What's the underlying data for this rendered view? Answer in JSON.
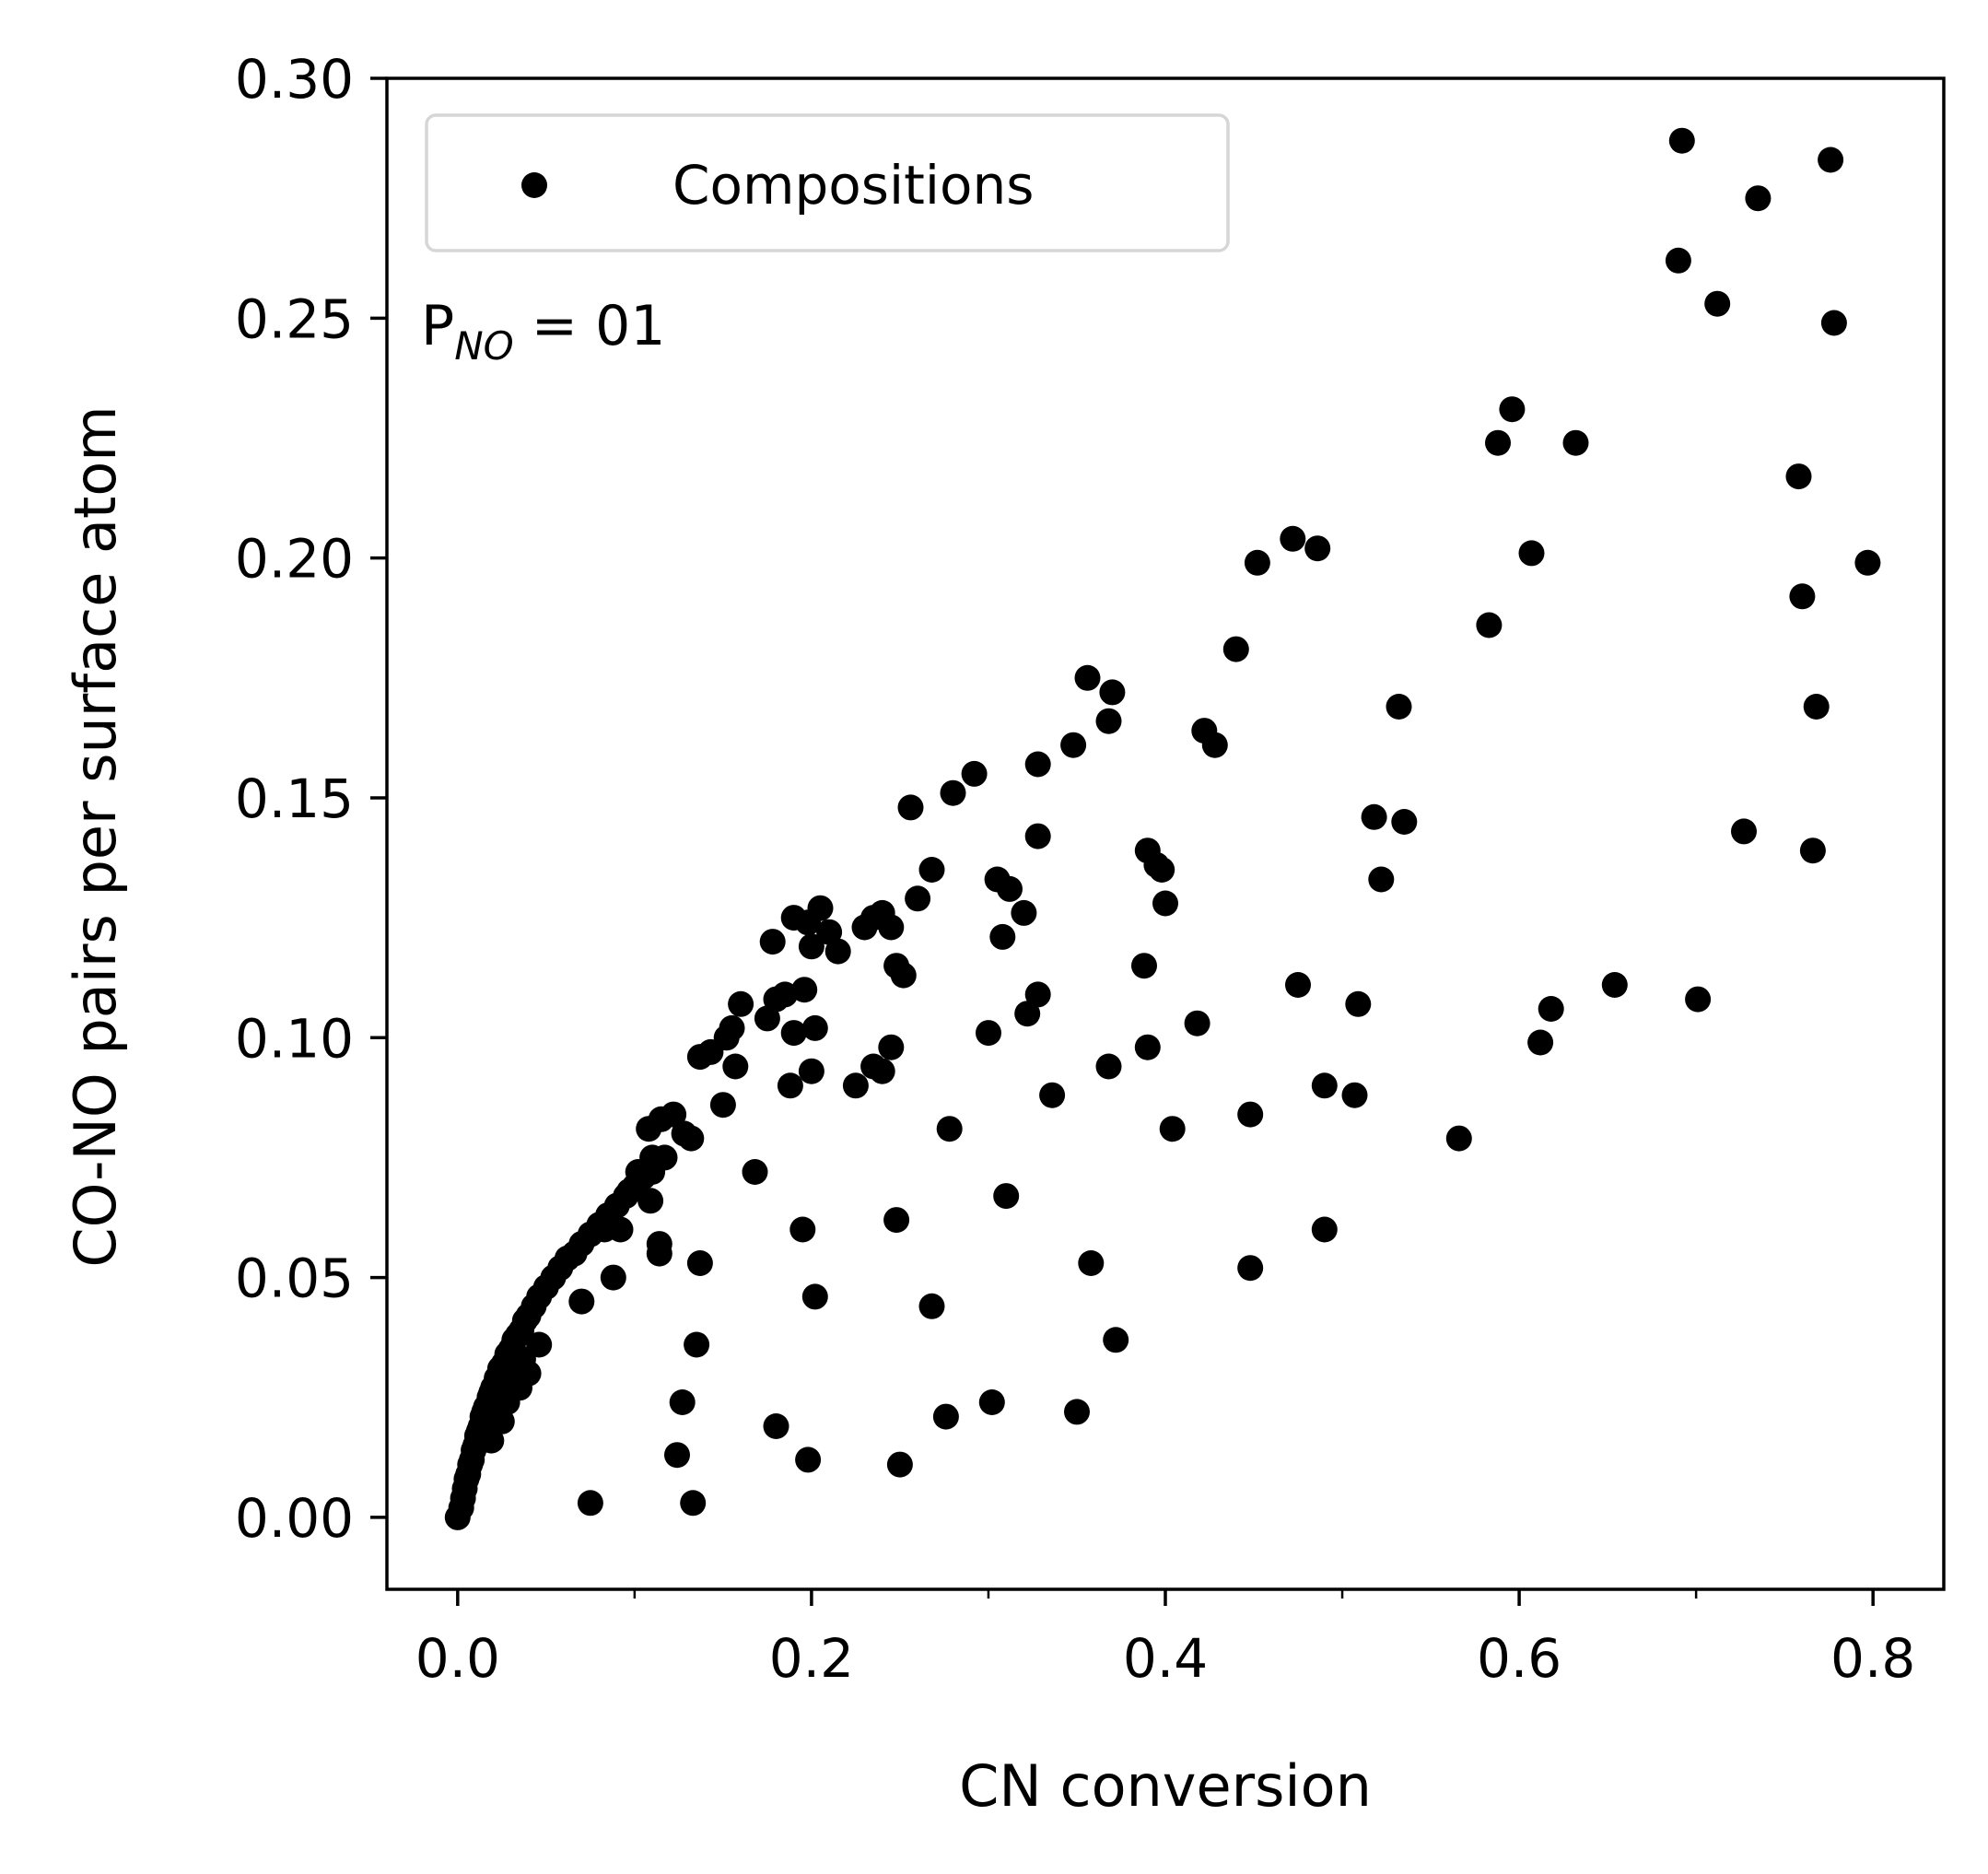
{
  "chart_data": {
    "type": "scatter",
    "xlabel": "CN conversion",
    "ylabel": "CO-NO pairs per surface atom",
    "xlim": [
      -0.04,
      0.84
    ],
    "ylim": [
      -0.015,
      0.3
    ],
    "x_ticks": [
      0.0,
      0.2,
      0.4,
      0.6,
      0.8
    ],
    "x_tick_labels": [
      "0.0",
      "0.2",
      "0.4",
      "0.6",
      "0.8"
    ],
    "x_minor_ticks": [
      0.1,
      0.3,
      0.5,
      0.7
    ],
    "y_ticks": [
      0.0,
      0.05,
      0.1,
      0.15,
      0.2,
      0.25,
      0.3
    ],
    "y_tick_labels": [
      "0.00",
      "0.05",
      "0.10",
      "0.15",
      "0.20",
      "0.25",
      "0.30"
    ],
    "grid": false,
    "legend": {
      "placement": "top-left",
      "entries": [
        "Compositions"
      ]
    },
    "annotation": {
      "base": "P",
      "subscript": "NO",
      "suffix": " = 01"
    },
    "marker_color": "#000000",
    "series": [
      {
        "name": "Compositions",
        "points": [
          [
            0.0,
            0.0
          ],
          [
            0.002,
            0.002
          ],
          [
            0.003,
            0.004
          ],
          [
            0.004,
            0.006
          ],
          [
            0.005,
            0.008
          ],
          [
            0.006,
            0.009
          ],
          [
            0.007,
            0.011
          ],
          [
            0.008,
            0.012
          ],
          [
            0.009,
            0.014
          ],
          [
            0.01,
            0.015
          ],
          [
            0.011,
            0.017
          ],
          [
            0.012,
            0.018
          ],
          [
            0.013,
            0.019
          ],
          [
            0.014,
            0.021
          ],
          [
            0.015,
            0.022
          ],
          [
            0.016,
            0.023
          ],
          [
            0.018,
            0.025
          ],
          [
            0.019,
            0.026
          ],
          [
            0.02,
            0.027
          ],
          [
            0.022,
            0.029
          ],
          [
            0.024,
            0.031
          ],
          [
            0.026,
            0.032
          ],
          [
            0.028,
            0.034
          ],
          [
            0.03,
            0.035
          ],
          [
            0.032,
            0.037
          ],
          [
            0.034,
            0.038
          ],
          [
            0.036,
            0.039
          ],
          [
            0.038,
            0.041
          ],
          [
            0.04,
            0.042
          ],
          [
            0.043,
            0.044
          ],
          [
            0.046,
            0.046
          ],
          [
            0.05,
            0.048
          ],
          [
            0.054,
            0.05
          ],
          [
            0.058,
            0.052
          ],
          [
            0.062,
            0.054
          ],
          [
            0.066,
            0.055
          ],
          [
            0.07,
            0.057
          ],
          [
            0.075,
            0.059
          ],
          [
            0.08,
            0.061
          ],
          [
            0.085,
            0.063
          ],
          [
            0.09,
            0.065
          ],
          [
            0.095,
            0.067
          ],
          [
            0.1,
            0.069
          ],
          [
            0.105,
            0.071
          ],
          [
            0.11,
            0.072
          ],
          [
            0.013,
            0.018
          ],
          [
            0.018,
            0.022
          ],
          [
            0.024,
            0.026
          ],
          [
            0.03,
            0.03
          ],
          [
            0.037,
            0.033
          ],
          [
            0.046,
            0.036
          ],
          [
            0.028,
            0.024
          ],
          [
            0.035,
            0.027
          ],
          [
            0.025,
            0.02
          ],
          [
            0.019,
            0.016
          ],
          [
            0.04,
            0.03
          ],
          [
            0.07,
            0.045
          ],
          [
            0.088,
            0.05
          ],
          [
            0.083,
            0.06
          ],
          [
            0.092,
            0.06
          ],
          [
            0.097,
            0.068
          ],
          [
            0.102,
            0.072
          ],
          [
            0.11,
            0.075
          ],
          [
            0.117,
            0.075
          ],
          [
            0.108,
            0.081
          ],
          [
            0.115,
            0.083
          ],
          [
            0.122,
            0.084
          ],
          [
            0.128,
            0.08
          ],
          [
            0.132,
            0.079
          ],
          [
            0.109,
            0.066
          ],
          [
            0.114,
            0.055
          ],
          [
            0.114,
            0.057
          ],
          [
            0.137,
            0.053
          ],
          [
            0.135,
            0.036
          ],
          [
            0.127,
            0.024
          ],
          [
            0.124,
            0.013
          ],
          [
            0.133,
            0.003
          ],
          [
            0.075,
            0.003
          ],
          [
            0.137,
            0.096
          ],
          [
            0.143,
            0.097
          ],
          [
            0.152,
            0.1
          ],
          [
            0.155,
            0.102
          ],
          [
            0.16,
            0.107
          ],
          [
            0.157,
            0.094
          ],
          [
            0.15,
            0.086
          ],
          [
            0.168,
            0.072
          ],
          [
            0.175,
            0.104
          ],
          [
            0.18,
            0.108
          ],
          [
            0.178,
            0.12
          ],
          [
            0.185,
            0.109
          ],
          [
            0.19,
            0.101
          ],
          [
            0.188,
            0.09
          ],
          [
            0.19,
            0.125
          ],
          [
            0.198,
            0.124
          ],
          [
            0.196,
            0.11
          ],
          [
            0.2,
            0.119
          ],
          [
            0.205,
            0.127
          ],
          [
            0.21,
            0.122
          ],
          [
            0.215,
            0.118
          ],
          [
            0.202,
            0.102
          ],
          [
            0.2,
            0.093
          ],
          [
            0.195,
            0.06
          ],
          [
            0.202,
            0.046
          ],
          [
            0.18,
            0.019
          ],
          [
            0.198,
            0.012
          ],
          [
            0.23,
            0.123
          ],
          [
            0.235,
            0.125
          ],
          [
            0.24,
            0.126
          ],
          [
            0.245,
            0.123
          ],
          [
            0.248,
            0.115
          ],
          [
            0.252,
            0.113
          ],
          [
            0.235,
            0.094
          ],
          [
            0.24,
            0.093
          ],
          [
            0.245,
            0.098
          ],
          [
            0.225,
            0.09
          ],
          [
            0.248,
            0.062
          ],
          [
            0.25,
            0.011
          ],
          [
            0.256,
            0.148
          ],
          [
            0.26,
            0.129
          ],
          [
            0.268,
            0.135
          ],
          [
            0.28,
            0.151
          ],
          [
            0.292,
            0.155
          ],
          [
            0.278,
            0.081
          ],
          [
            0.268,
            0.044
          ],
          [
            0.276,
            0.021
          ],
          [
            0.3,
            0.101
          ],
          [
            0.302,
            0.024
          ],
          [
            0.305,
            0.133
          ],
          [
            0.312,
            0.131
          ],
          [
            0.32,
            0.126
          ],
          [
            0.308,
            0.121
          ],
          [
            0.328,
            0.142
          ],
          [
            0.328,
            0.157
          ],
          [
            0.328,
            0.109
          ],
          [
            0.322,
            0.105
          ],
          [
            0.31,
            0.067
          ],
          [
            0.336,
            0.088
          ],
          [
            0.348,
            0.161
          ],
          [
            0.356,
            0.175
          ],
          [
            0.368,
            0.166
          ],
          [
            0.37,
            0.172
          ],
          [
            0.368,
            0.094
          ],
          [
            0.358,
            0.053
          ],
          [
            0.35,
            0.022
          ],
          [
            0.372,
            0.037
          ],
          [
            0.39,
            0.139
          ],
          [
            0.395,
            0.136
          ],
          [
            0.398,
            0.135
          ],
          [
            0.4,
            0.128
          ],
          [
            0.388,
            0.115
          ],
          [
            0.39,
            0.098
          ],
          [
            0.404,
            0.081
          ],
          [
            0.418,
            0.103
          ],
          [
            0.422,
            0.164
          ],
          [
            0.428,
            0.161
          ],
          [
            0.44,
            0.181
          ],
          [
            0.452,
            0.199
          ],
          [
            0.448,
            0.084
          ],
          [
            0.448,
            0.052
          ],
          [
            0.472,
            0.204
          ],
          [
            0.486,
            0.202
          ],
          [
            0.475,
            0.111
          ],
          [
            0.49,
            0.09
          ],
          [
            0.49,
            0.06
          ],
          [
            0.507,
            0.088
          ],
          [
            0.509,
            0.107
          ],
          [
            0.518,
            0.146
          ],
          [
            0.522,
            0.133
          ],
          [
            0.532,
            0.169
          ],
          [
            0.535,
            0.145
          ],
          [
            0.566,
            0.079
          ],
          [
            0.583,
            0.186
          ],
          [
            0.588,
            0.224
          ],
          [
            0.596,
            0.231
          ],
          [
            0.607,
            0.201
          ],
          [
            0.612,
            0.099
          ],
          [
            0.618,
            0.106
          ],
          [
            0.632,
            0.224
          ],
          [
            0.654,
            0.111
          ],
          [
            0.69,
            0.262
          ],
          [
            0.692,
            0.287
          ],
          [
            0.701,
            0.108
          ],
          [
            0.712,
            0.253
          ],
          [
            0.727,
            0.143
          ],
          [
            0.735,
            0.275
          ],
          [
            0.758,
            0.217
          ],
          [
            0.76,
            0.192
          ],
          [
            0.766,
            0.139
          ],
          [
            0.768,
            0.169
          ],
          [
            0.776,
            0.283
          ],
          [
            0.778,
            0.249
          ],
          [
            0.797,
            0.199
          ]
        ]
      }
    ]
  }
}
